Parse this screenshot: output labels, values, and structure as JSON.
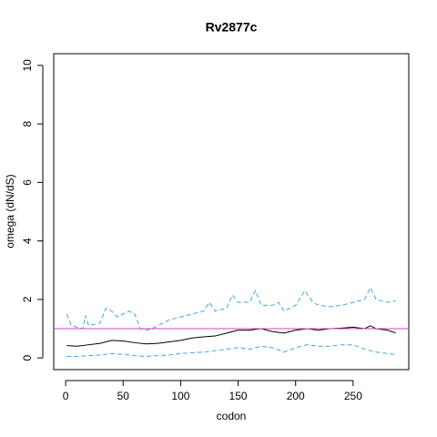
{
  "chart_data": {
    "type": "line",
    "title": "Rv2877c",
    "xlabel": "codon",
    "ylabel": "omega (dN/dS)",
    "xlim": [
      -10.4,
      298.4
    ],
    "ylim": [
      -0.4,
      10.4
    ],
    "xticks": [
      0,
      50,
      100,
      150,
      200,
      250
    ],
    "yticks": [
      0,
      2,
      4,
      6,
      8,
      10
    ],
    "hline": {
      "value": 1,
      "color": "#cc44cc"
    },
    "series": [
      {
        "color": "#000000",
        "dash": false,
        "x": [
          1,
          10,
          20,
          30,
          40,
          50,
          60,
          70,
          80,
          90,
          100,
          110,
          120,
          130,
          140,
          150,
          160,
          170,
          180,
          190,
          200,
          210,
          220,
          230,
          240,
          250,
          260,
          265,
          270,
          280,
          287
        ],
        "values": [
          0.42,
          0.4,
          0.45,
          0.5,
          0.6,
          0.58,
          0.52,
          0.48,
          0.5,
          0.55,
          0.6,
          0.68,
          0.72,
          0.75,
          0.85,
          0.95,
          0.95,
          1.0,
          0.9,
          0.85,
          0.95,
          1.0,
          0.95,
          1.0,
          1.02,
          1.05,
          1.0,
          1.1,
          1.0,
          0.95,
          0.85
        ]
      },
      {
        "color": "#3fa7e0",
        "dash": true,
        "x": [
          1,
          5,
          10,
          15,
          17,
          20,
          30,
          35,
          40,
          45,
          50,
          55,
          60,
          65,
          70,
          75,
          80,
          90,
          100,
          110,
          120,
          125,
          130,
          140,
          145,
          150,
          160,
          165,
          170,
          180,
          185,
          190,
          200,
          208,
          215,
          220,
          230,
          240,
          250,
          260,
          265,
          270,
          280,
          287
        ],
        "values": [
          1.5,
          1.1,
          1.05,
          1.0,
          1.45,
          1.1,
          1.2,
          1.7,
          1.6,
          1.4,
          1.5,
          1.6,
          1.5,
          1.0,
          0.95,
          1.0,
          1.1,
          1.3,
          1.4,
          1.5,
          1.6,
          1.9,
          1.6,
          1.7,
          2.15,
          1.9,
          1.9,
          2.3,
          1.8,
          1.8,
          1.9,
          1.6,
          1.8,
          2.3,
          1.9,
          1.8,
          1.75,
          1.8,
          1.9,
          2.0,
          2.4,
          2.0,
          1.9,
          1.95
        ]
      },
      {
        "color": "#3fa7e0",
        "dash": true,
        "x": [
          1,
          10,
          20,
          30,
          40,
          50,
          60,
          70,
          80,
          90,
          100,
          120,
          140,
          150,
          160,
          170,
          180,
          190,
          200,
          210,
          220,
          230,
          240,
          250,
          260,
          270,
          280,
          287
        ],
        "values": [
          0.05,
          0.05,
          0.08,
          0.1,
          0.15,
          0.12,
          0.08,
          0.05,
          0.08,
          0.1,
          0.15,
          0.2,
          0.3,
          0.35,
          0.3,
          0.4,
          0.35,
          0.2,
          0.35,
          0.45,
          0.4,
          0.4,
          0.45,
          0.45,
          0.3,
          0.2,
          0.15,
          0.12
        ]
      }
    ]
  }
}
